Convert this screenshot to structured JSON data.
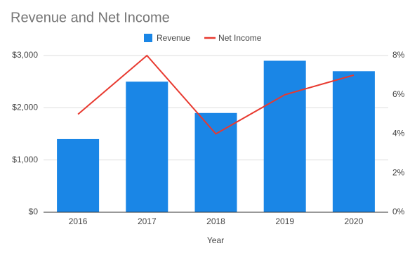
{
  "chart_data": {
    "type": "combo",
    "title": "Revenue and Net Income",
    "x_label": "Year",
    "categories": [
      "2016",
      "2017",
      "2018",
      "2019",
      "2020"
    ],
    "series": [
      {
        "name": "Revenue",
        "type": "bar",
        "color": "#1a86e6",
        "values": [
          1400,
          2500,
          1900,
          2900,
          2700
        ]
      },
      {
        "name": "Net Income",
        "type": "line",
        "axis": "y2",
        "color": "#e8392f",
        "values": [
          5,
          8,
          4,
          6,
          7
        ]
      }
    ],
    "ylim": [
      0,
      3000
    ],
    "yticks": [
      {
        "value": 0,
        "label": "$0"
      },
      {
        "value": 1000,
        "label": "$1,000"
      },
      {
        "value": 2000,
        "label": "$2,000"
      },
      {
        "value": 3000,
        "label": "$3,000"
      }
    ],
    "y2lim": [
      0,
      8
    ],
    "y2ticks": [
      {
        "value": 0,
        "label": "0%"
      },
      {
        "value": 2,
        "label": "2%"
      },
      {
        "value": 4,
        "label": "4%"
      },
      {
        "value": 6,
        "label": "6%"
      },
      {
        "value": 8,
        "label": "8%"
      }
    ],
    "grid": true,
    "legend": "top"
  }
}
